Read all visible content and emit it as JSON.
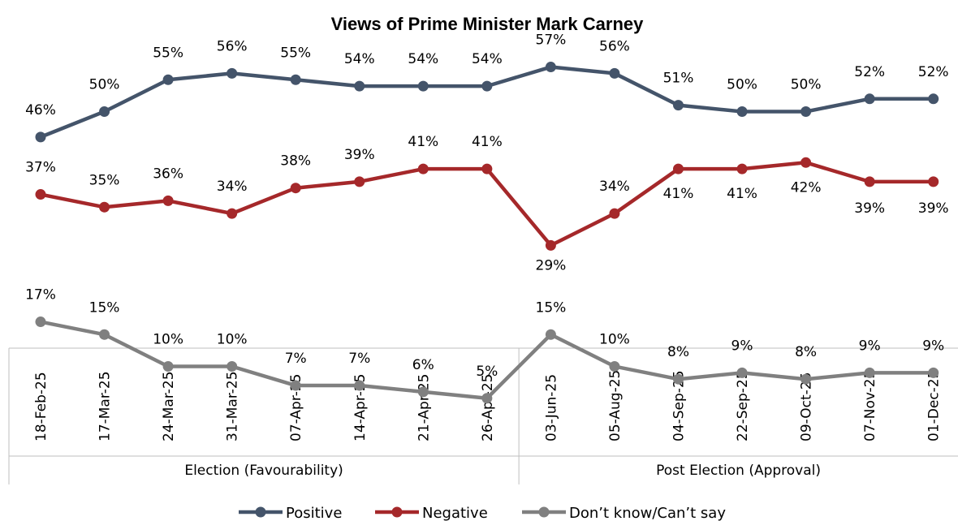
{
  "chart_data": {
    "type": "line",
    "title": "Views of Prime Minister Mark Carney",
    "x": [
      "18-Feb-25",
      "17-Mar-25",
      "24-Mar-25",
      "31-Mar-25",
      "07-Apr-25",
      "14-Apr-25",
      "21-Apr-25",
      "26-Apr-25",
      "03-Jun-25",
      "05-Aug-25",
      "04-Sep-25",
      "22-Sep-25",
      "09-Oct-25",
      "07-Nov-25",
      "01-Dec-25"
    ],
    "groups": [
      {
        "label": "Election (Favourability)",
        "start": 0,
        "end": 7
      },
      {
        "label": "Post Election (Approval)",
        "start": 8,
        "end": 14
      }
    ],
    "series": [
      {
        "name": "Positive",
        "color": "#44546a",
        "values": [
          46,
          50,
          55,
          56,
          55,
          54,
          54,
          54,
          57,
          56,
          51,
          50,
          50,
          52,
          52
        ],
        "labels": [
          "46%",
          "50%",
          "55%",
          "56%",
          "55%",
          "54%",
          "54%",
          "54%",
          "57%",
          "56%",
          "51%",
          "50%",
          "50%",
          "52%",
          "52%"
        ]
      },
      {
        "name": "Negative",
        "color": "#a5282a",
        "values": [
          37,
          35,
          36,
          34,
          38,
          39,
          41,
          41,
          29,
          34,
          41,
          41,
          42,
          39,
          39
        ],
        "labels": [
          "37%",
          "35%",
          "36%",
          "34%",
          "38%",
          "39%",
          "41%",
          "41%",
          "29%",
          "34%",
          "41%",
          "41%",
          "42%",
          "39%",
          "39%"
        ]
      },
      {
        "name": "Don’t know/Can’t say",
        "color": "#808080",
        "values": [
          17,
          15,
          10,
          10,
          7,
          7,
          6,
          5,
          15,
          10,
          8,
          9,
          8,
          9,
          9
        ],
        "labels": [
          "17%",
          "15%",
          "10%",
          "10%",
          "7%",
          "7%",
          "6%",
          "5%",
          "15%",
          "10%",
          "8%",
          "9%",
          "8%",
          "9%",
          "9%"
        ]
      }
    ],
    "legend_position": "bottom",
    "grid": false
  }
}
